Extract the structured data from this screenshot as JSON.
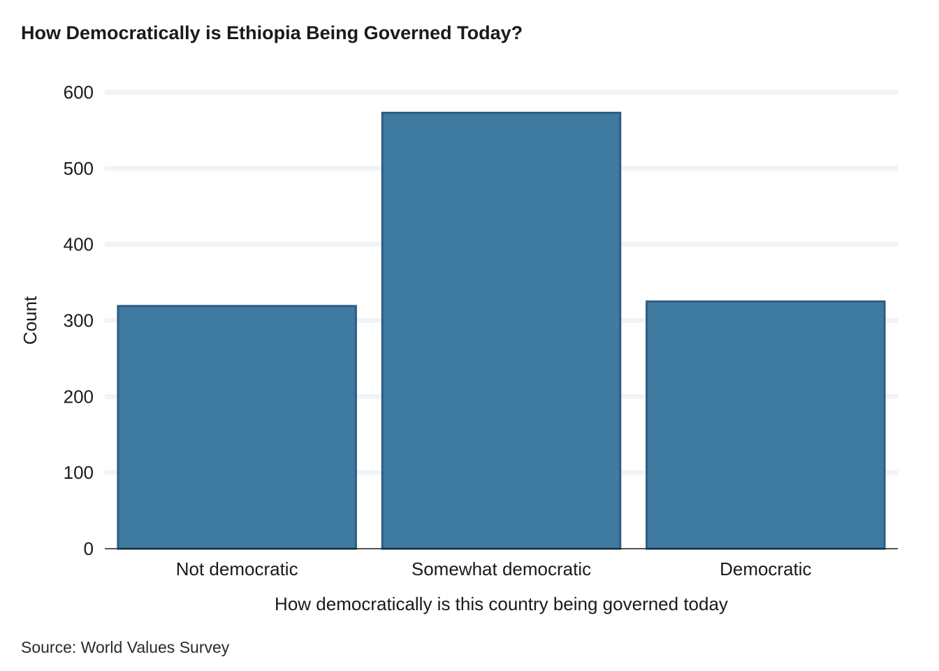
{
  "chart_data": {
    "type": "bar",
    "title": "How Democratically is Ethiopia Being Governed Today?",
    "xlabel": "How democratically is this country being governed today",
    "ylabel": "Count",
    "caption": "Source: World Values Survey",
    "categories": [
      "Not democratic",
      "Somewhat democratic",
      "Democratic"
    ],
    "values": [
      319,
      573,
      325
    ],
    "ylim": [
      0,
      600
    ],
    "yticks": [
      0,
      100,
      200,
      300,
      400,
      500,
      600
    ],
    "ytick_labels": [
      "0",
      "100",
      "200",
      "300",
      "400",
      "500",
      "600"
    ],
    "grid": true,
    "legend": "none",
    "bar_color": "#3f7aa0",
    "bar_edge_color": "#2d5d84",
    "grid_color": "#f2f3f8"
  }
}
